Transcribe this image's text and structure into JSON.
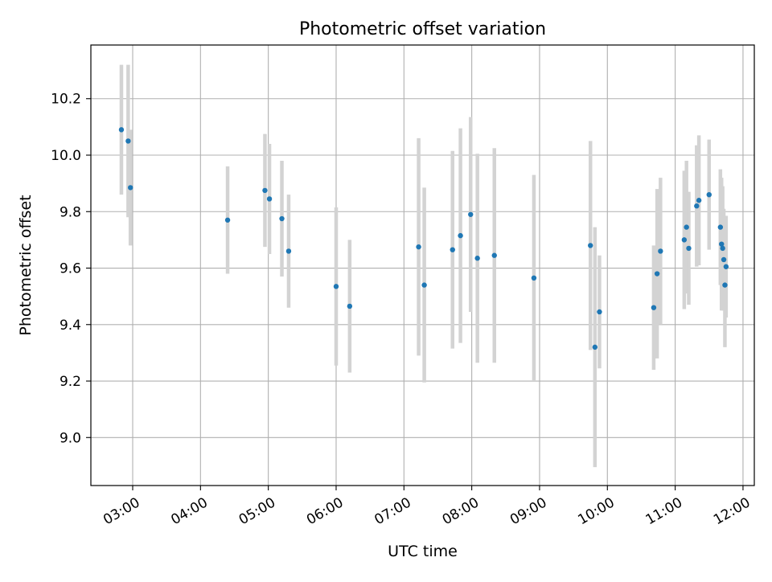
{
  "chart_data": {
    "type": "scatter",
    "title": "Photometric offset variation",
    "xlabel": "UTC time",
    "ylabel": "Photometric offset",
    "x_ticks": [
      "03:00",
      "04:00",
      "05:00",
      "06:00",
      "07:00",
      "08:00",
      "09:00",
      "10:00",
      "11:00",
      "12:00"
    ],
    "y_ticks": [
      9.0,
      9.2,
      9.4,
      9.6,
      9.8,
      10.0,
      10.2
    ],
    "xlim": [
      "02:23",
      "12:10"
    ],
    "ylim": [
      8.83,
      10.39
    ],
    "grid": true,
    "marker_color": "#1f77b4",
    "errorbar_color": "#d3d3d3",
    "series": [
      {
        "points": [
          {
            "x": "02:50",
            "y": 10.09,
            "err": 0.23
          },
          {
            "x": "02:56",
            "y": 10.05,
            "err": 0.27
          },
          {
            "x": "02:58",
            "y": 9.885,
            "err": 0.205
          },
          {
            "x": "04:24",
            "y": 9.77,
            "err": 0.19
          },
          {
            "x": "04:57",
            "y": 9.875,
            "err": 0.2
          },
          {
            "x": "05:01",
            "y": 9.845,
            "err": 0.195
          },
          {
            "x": "05:12",
            "y": 9.775,
            "err": 0.205
          },
          {
            "x": "05:18",
            "y": 9.66,
            "err": 0.2
          },
          {
            "x": "06:00",
            "y": 9.535,
            "err": 0.28
          },
          {
            "x": "06:12",
            "y": 9.465,
            "err": 0.235
          },
          {
            "x": "07:13",
            "y": 9.675,
            "err": 0.385
          },
          {
            "x": "07:18",
            "y": 9.54,
            "err": 0.345
          },
          {
            "x": "07:43",
            "y": 9.665,
            "err": 0.35
          },
          {
            "x": "07:50",
            "y": 9.715,
            "err": 0.38
          },
          {
            "x": "07:59",
            "y": 9.79,
            "err": 0.345
          },
          {
            "x": "08:05",
            "y": 9.635,
            "err": 0.37
          },
          {
            "x": "08:20",
            "y": 9.645,
            "err": 0.38
          },
          {
            "x": "08:55",
            "y": 9.565,
            "err": 0.365
          },
          {
            "x": "09:45",
            "y": 9.68,
            "err": 0.37
          },
          {
            "x": "09:49",
            "y": 9.32,
            "err": 0.425
          },
          {
            "x": "09:53",
            "y": 9.445,
            "err": 0.2
          },
          {
            "x": "10:41",
            "y": 9.46,
            "err": 0.22
          },
          {
            "x": "10:44",
            "y": 9.58,
            "err": 0.3
          },
          {
            "x": "10:47",
            "y": 9.66,
            "err": 0.26
          },
          {
            "x": "11:08",
            "y": 9.7,
            "err": 0.245
          },
          {
            "x": "11:10",
            "y": 9.745,
            "err": 0.235
          },
          {
            "x": "11:12",
            "y": 9.67,
            "err": 0.2
          },
          {
            "x": "11:19",
            "y": 9.82,
            "err": 0.215
          },
          {
            "x": "11:21",
            "y": 9.84,
            "err": 0.23
          },
          {
            "x": "11:30",
            "y": 9.86,
            "err": 0.195
          },
          {
            "x": "11:40",
            "y": 9.745,
            "err": 0.205
          },
          {
            "x": "11:41",
            "y": 9.685,
            "err": 0.235
          },
          {
            "x": "11:42",
            "y": 9.67,
            "err": 0.22
          },
          {
            "x": "11:43",
            "y": 9.63,
            "err": 0.18
          },
          {
            "x": "11:44",
            "y": 9.54,
            "err": 0.22
          },
          {
            "x": "11:45",
            "y": 9.605,
            "err": 0.18
          }
        ]
      }
    ]
  }
}
